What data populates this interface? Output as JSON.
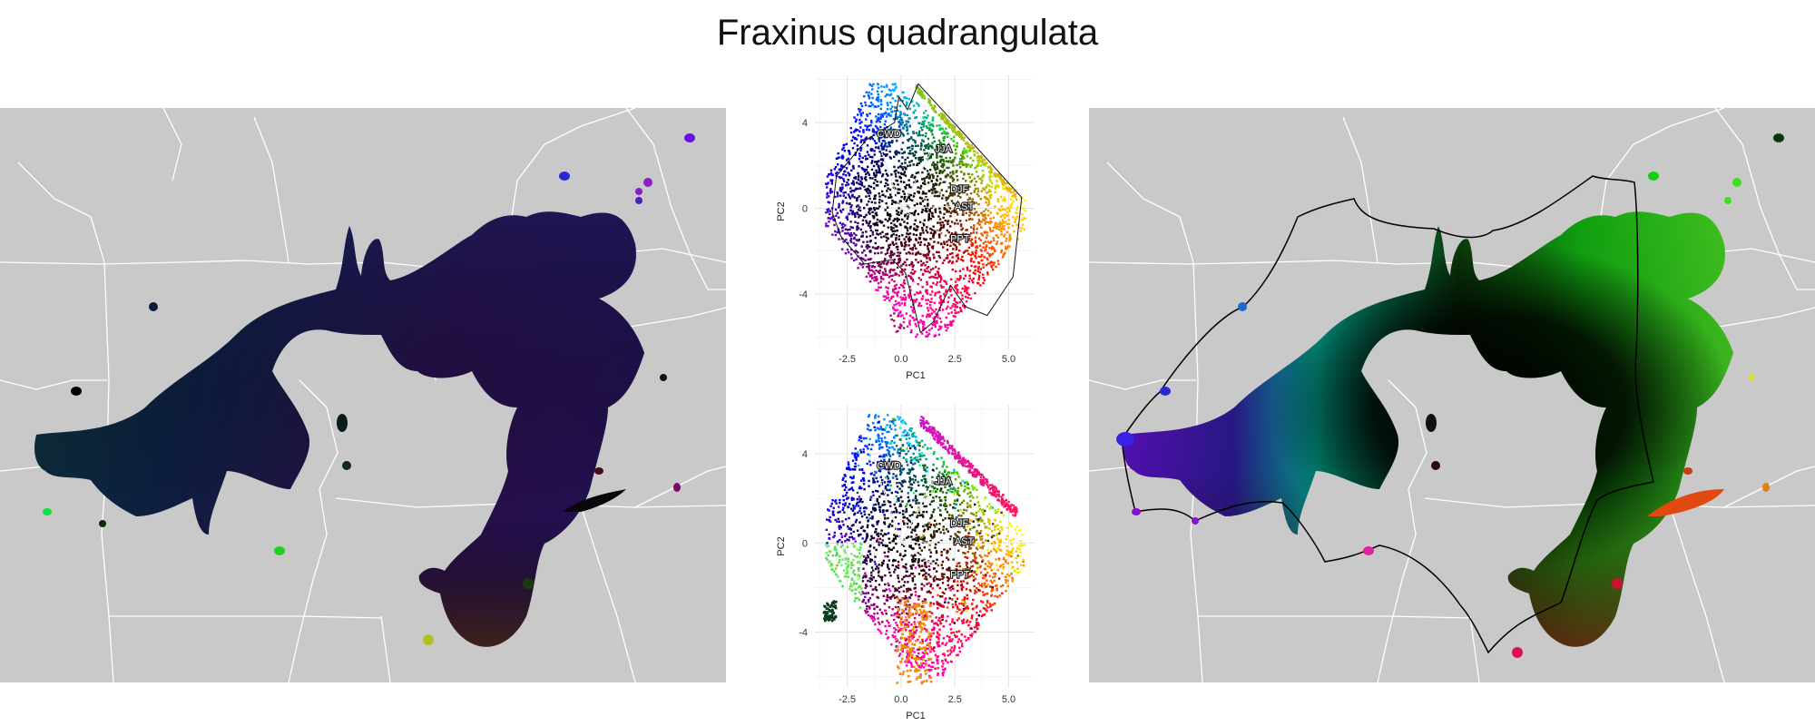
{
  "figure": {
    "title": "Fraxinus quadrangulata"
  },
  "colors": {
    "map_background": "#c9c9c9",
    "state_lines": "#ffffff",
    "hull_line": "#000000"
  },
  "chart_data": [
    {
      "type": "map",
      "panel": "left",
      "title": "",
      "description_colors": [
        "#0a1a3a",
        "#0e4a4a",
        "#4a1a6a",
        "#5a2a10"
      ]
    },
    {
      "type": "scatter",
      "panel": "pca-top",
      "title": "",
      "xlabel": "PC1",
      "ylabel": "PC2",
      "xlim": [
        -4,
        6.2
      ],
      "ylim": [
        -6.5,
        6.2
      ],
      "xticks": [
        "-2.5",
        "0.0",
        "2.5",
        "5.0"
      ],
      "yticks": [
        "4",
        "0",
        "-4"
      ],
      "vectors": [
        {
          "label": "CWD",
          "x": -1.2,
          "y": 3.5
        },
        {
          "label": "JJA",
          "x": 1.5,
          "y": 2.8
        },
        {
          "label": "DJF",
          "x": 2.2,
          "y": 0.9
        },
        {
          "label": "AST",
          "x": 2.4,
          "y": 0.1
        },
        {
          "label": "PPT",
          "x": 2.2,
          "y": -1.4
        }
      ]
    },
    {
      "type": "scatter",
      "panel": "pca-bottom",
      "title": "",
      "xlabel": "PC1",
      "ylabel": "PC2",
      "xlim": [
        -4,
        6.2
      ],
      "ylim": [
        -6.5,
        6.2
      ],
      "xticks": [
        "-2.5",
        "0.0",
        "2.5",
        "5.0"
      ],
      "yticks": [
        "4",
        "0",
        "-4"
      ],
      "vectors": [
        {
          "label": "CWD",
          "x": -1.2,
          "y": 3.5
        },
        {
          "label": "JJA",
          "x": 1.5,
          "y": 2.8
        },
        {
          "label": "DJF",
          "x": 2.2,
          "y": 0.9
        },
        {
          "label": "AST",
          "x": 2.4,
          "y": 0.1
        },
        {
          "label": "PPT",
          "x": 2.2,
          "y": -1.4
        }
      ]
    },
    {
      "type": "map",
      "panel": "right",
      "title": "",
      "description_colors": [
        "#00e0c0",
        "#1a2a8a",
        "#8a00d0",
        "#00c000",
        "#8a0000",
        "#000000"
      ]
    }
  ]
}
